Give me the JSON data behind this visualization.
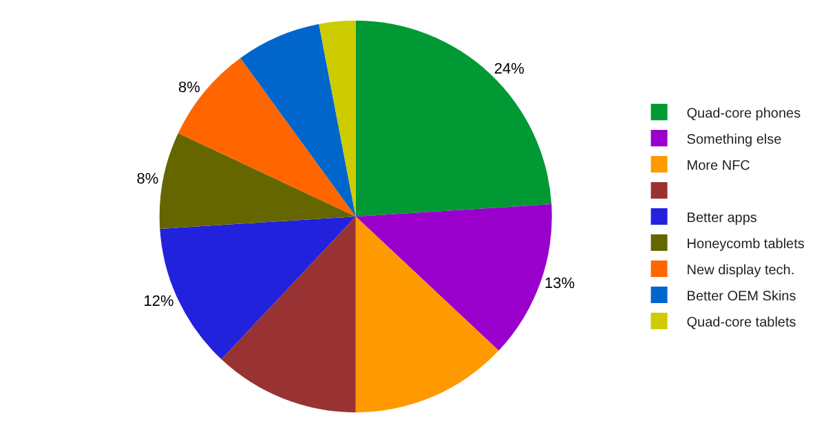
{
  "chart_data": {
    "type": "pie",
    "categories": [
      "Quad-core phones",
      "Something else",
      "More NFC",
      null,
      "Better apps",
      "Honeycomb tablets",
      "New display tech.",
      "Better OEM Skins",
      "Quad-core tablets"
    ],
    "values": [
      24,
      13,
      13,
      12,
      12,
      8,
      8,
      7,
      3
    ],
    "value_labels": [
      "24%",
      "13%",
      null,
      null,
      "12%",
      "8%",
      "8%",
      null,
      null
    ],
    "colors": [
      "#009933",
      "#9900cc",
      "#ff9900",
      "#993333",
      "#2222dd",
      "#666600",
      "#ff6600",
      "#0066cc",
      "#cccc00"
    ],
    "legend": "right"
  }
}
